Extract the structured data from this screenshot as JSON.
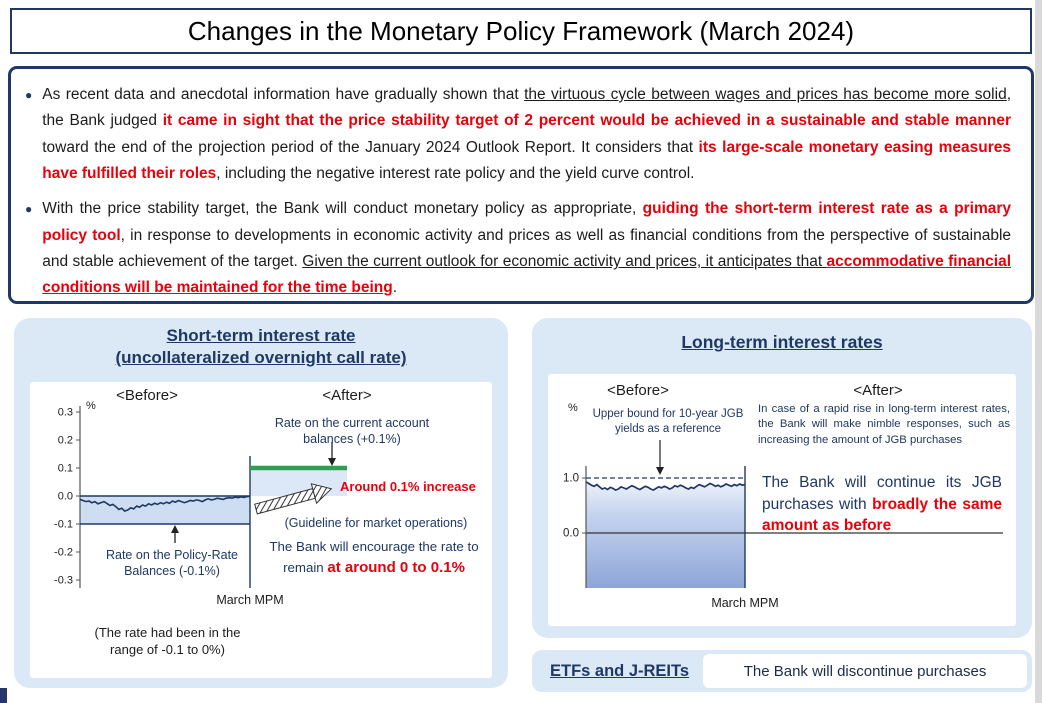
{
  "colors": {
    "navy": "#1F3864",
    "red": "#E8000B",
    "green": "#2E9E4F",
    "panel_blue": "#DBE8F6",
    "band_blue": "#CDDDF2",
    "after_blue": "#DCE8F7",
    "area_gradient_top": "#EDF2FB",
    "area_gradient_bottom": "#8DA5D8"
  },
  "title": "Changes in the Monetary Policy Framework (March 2024)",
  "bullets": [
    {
      "segments": [
        {
          "t": "As recent data and anecdotal information have gradually shown that ",
          "s": "n"
        },
        {
          "t": "the virtuous cycle between wages and prices has become more solid",
          "s": "u"
        },
        {
          "t": ", the Bank judged ",
          "s": "n"
        },
        {
          "t": "it came in sight that the price stability target of 2 percent would be achieved in a sustainable and stable manner",
          "s": "rb"
        },
        {
          "t": " toward the end of the projection period of the January 2024 Outlook Report. It considers that ",
          "s": "n"
        },
        {
          "t": "its large-scale monetary easing measures have fulfilled their roles",
          "s": "rb"
        },
        {
          "t": ", including the negative interest rate policy and the yield curve control.",
          "s": "n"
        }
      ]
    },
    {
      "segments": [
        {
          "t": "With the price stability target, the Bank will conduct monetary policy as appropriate, ",
          "s": "n"
        },
        {
          "t": "guiding the short-term interest rate as a primary policy tool",
          "s": "rb"
        },
        {
          "t": ", in response to developments in economic activity and prices as well as financial conditions from the perspective of sustainable and stable achievement of the target. ",
          "s": "n"
        },
        {
          "t": "Given the current outlook for economic activity and prices, it anticipates that ",
          "s": "u"
        },
        {
          "t": "accommodative financial conditions will be maintained for the time being",
          "s": "rbu"
        },
        {
          "t": ".",
          "s": "n"
        }
      ]
    }
  ],
  "short_panel": {
    "heading_line1": "Short-term interest rate",
    "heading_line2": "(uncollateralized overnight call rate)",
    "percent": "%",
    "before_label": "<Before>",
    "after_label": "<After>",
    "current_account_note": "Rate on the current account balances (+0.1%)",
    "increase_note": "Around 0.1% increase",
    "guideline_note": "(Guideline for market operations)",
    "encourage_segments": [
      {
        "t": "The Bank will encourage the rate to remain ",
        "s": "n"
      },
      {
        "t": "at around 0 to 0.1%",
        "s": "rb"
      }
    ],
    "policy_rate_note": "Rate on the Policy-Rate Balances (-0.1%)",
    "march_mpm": "March MPM",
    "range_note": "(The rate had been in the range of -0.1 to 0%)"
  },
  "long_panel": {
    "heading": "Long-term interest rates",
    "percent": "%",
    "before_label": "<Before>",
    "after_label": "<After>",
    "upper_bound_note": "Upper bound for 10-year JGB yields as a reference",
    "nimble_note": "In case of a rapid rise in long-term interest rates, the Bank will make nimble responses, such as increasing the amount of JGB purchases",
    "continue_segments": [
      {
        "t": "The Bank will continue its JGB purchases with ",
        "s": "n"
      },
      {
        "t": "broadly the same amount as before",
        "s": "rb"
      }
    ],
    "march_mpm": "March MPM"
  },
  "etf_box": {
    "label": "ETFs and J-REITs",
    "text": "The Bank will discontinue purchases"
  },
  "chart_data": [
    {
      "type": "line",
      "title": "Short-term interest rate (uncollateralized overnight call rate)",
      "ylabel": "%",
      "ylim": [
        -0.3,
        0.3
      ],
      "yticks": [
        0.3,
        0.2,
        0.1,
        0.0,
        -0.1,
        -0.2,
        -0.3
      ],
      "x_divider_label": "March MPM",
      "series": [
        {
          "name": "Uncollateralized overnight call rate (before March MPM)",
          "values": [
            -0.012,
            -0.016,
            -0.02,
            -0.018,
            -0.024,
            -0.02,
            -0.028,
            -0.024,
            -0.02,
            -0.026,
            -0.034,
            -0.03,
            -0.038,
            -0.048,
            -0.044,
            -0.054,
            -0.05,
            -0.042,
            -0.046,
            -0.036,
            -0.04,
            -0.032,
            -0.036,
            -0.028,
            -0.032,
            -0.026,
            -0.03,
            -0.024,
            -0.028,
            -0.022,
            -0.026,
            -0.018,
            -0.022,
            -0.016,
            -0.02,
            -0.024,
            -0.02,
            -0.016,
            -0.018,
            -0.014,
            -0.016,
            -0.02,
            -0.014,
            -0.01,
            -0.014,
            -0.012,
            -0.008,
            -0.01,
            -0.012,
            -0.008,
            -0.006,
            -0.008,
            -0.004,
            -0.006,
            -0.003,
            -0.005,
            -0.002,
            -0.001
          ]
        }
      ],
      "annotations": {
        "before_band": [
          -0.1,
          0.0
        ],
        "policy_rate_balance_rate": -0.1,
        "current_account_balance_rate_after": 0.1,
        "after_range": [
          0.0,
          0.1
        ]
      }
    },
    {
      "type": "area",
      "title": "Long-term interest rates",
      "ylabel": "%",
      "yticks": [
        1.0,
        0.0
      ],
      "x_divider_label": "March MPM",
      "series": [
        {
          "name": "10-year JGB yield (before March MPM)",
          "values": [
            0.93,
            0.9,
            0.87,
            0.85,
            0.88,
            0.84,
            0.8,
            0.82,
            0.79,
            0.83,
            0.81,
            0.78,
            0.8,
            0.84,
            0.82,
            0.8,
            0.83,
            0.86,
            0.84,
            0.81,
            0.79,
            0.82,
            0.85,
            0.83,
            0.8,
            0.78,
            0.81,
            0.84,
            0.82,
            0.85,
            0.83,
            0.8,
            0.82,
            0.86,
            0.84,
            0.87,
            0.85,
            0.82,
            0.8,
            0.83,
            0.81,
            0.85,
            0.88,
            0.86,
            0.84,
            0.87,
            0.9,
            0.88,
            0.85,
            0.87,
            0.84,
            0.86,
            0.89,
            0.87,
            0.85,
            0.88,
            0.86,
            0.89,
            0.87,
            0.88
          ]
        }
      ],
      "annotations": {
        "upper_bound_reference": 1.0
      }
    }
  ]
}
